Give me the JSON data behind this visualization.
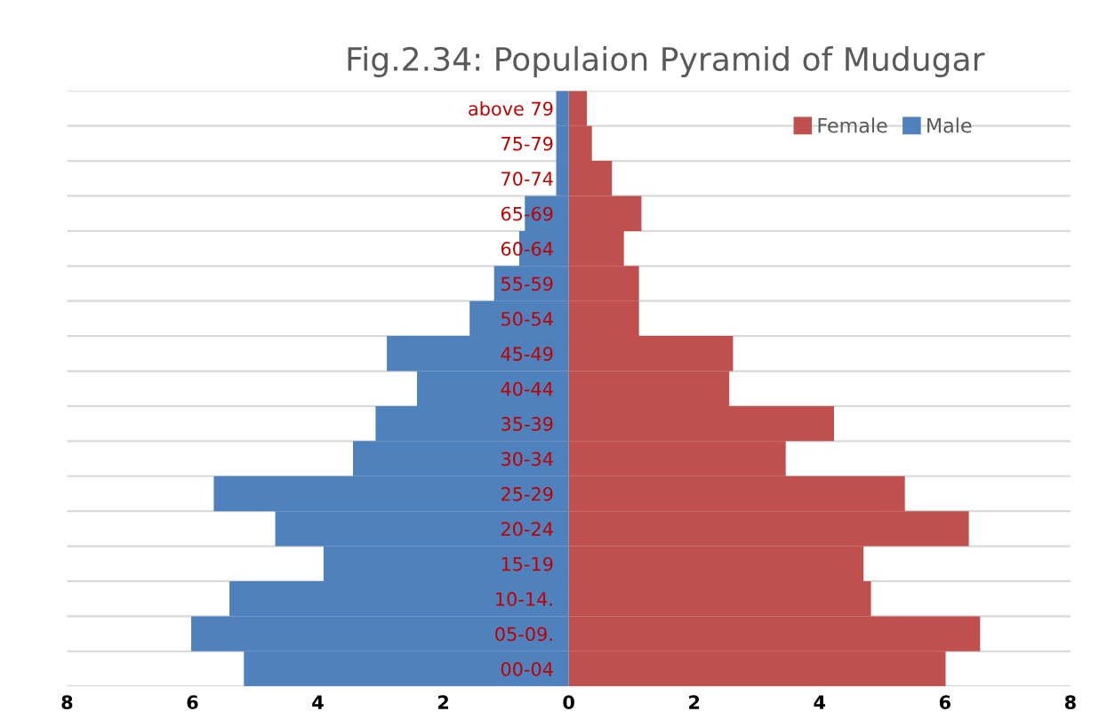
{
  "chart_data": {
    "type": "bar",
    "orientation": "horizontal",
    "title": "Fig.2.34: Populaion Pyramid of Mudugar",
    "categories": [
      "above 79",
      "75-79",
      "70-74",
      "65-69",
      "60-64",
      "55-59",
      "50-54",
      "45-49",
      "40-44",
      "35-39",
      "30-34",
      "25-29",
      "20-24",
      "15-19",
      "10-14.",
      "05-09.",
      "00-04"
    ],
    "series": [
      {
        "name": "Female",
        "color": "#c0504d",
        "values": [
          0.29,
          0.37,
          0.69,
          1.16,
          0.88,
          1.12,
          1.12,
          2.62,
          2.56,
          4.23,
          3.46,
          5.36,
          6.38,
          4.7,
          4.82,
          6.56,
          6.01
        ]
      },
      {
        "name": "Male",
        "color": "#4f81bd",
        "values": [
          -0.2,
          -0.2,
          -0.2,
          -0.7,
          -0.79,
          -1.19,
          -1.58,
          -2.9,
          -2.42,
          -3.08,
          -3.44,
          -5.66,
          -4.68,
          -3.91,
          -5.41,
          -6.02,
          -5.18
        ]
      }
    ],
    "xlim": [
      -8,
      8
    ],
    "xticks": [
      {
        "value": -8,
        "label": "8"
      },
      {
        "value": -6,
        "label": "6"
      },
      {
        "value": -4,
        "label": "4"
      },
      {
        "value": -2,
        "label": "2"
      },
      0,
      2,
      4,
      6,
      8
    ],
    "stacked": true,
    "grid": "y",
    "legend": "top right"
  }
}
